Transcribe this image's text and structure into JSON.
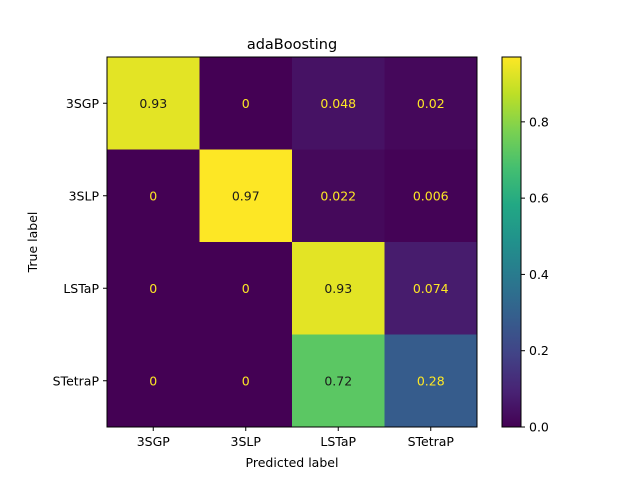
{
  "chart_data": {
    "type": "heatmap",
    "title": "adaBoosting",
    "xlabel": "Predicted label",
    "ylabel": "True label",
    "x_categories": [
      "3SGP",
      "3SLP",
      "LSTaP",
      "STetraP"
    ],
    "y_categories": [
      "3SGP",
      "3SLP",
      "LSTaP",
      "STetraP"
    ],
    "values": [
      [
        0.93,
        0,
        0.048,
        0.02
      ],
      [
        0,
        0.97,
        0.022,
        0.006
      ],
      [
        0,
        0,
        0.93,
        0.074
      ],
      [
        0,
        0,
        0.72,
        0.28
      ]
    ],
    "labels": [
      [
        "0.93",
        "0",
        "0.048",
        "0.02"
      ],
      [
        "0",
        "0.97",
        "0.022",
        "0.006"
      ],
      [
        "0",
        "0",
        "0.93",
        "0.074"
      ],
      [
        "0",
        "0",
        "0.72",
        "0.28"
      ]
    ],
    "colormap": "viridis",
    "vmin": 0,
    "vmax": 0.97,
    "colorbar_ticks": [
      0.0,
      0.2,
      0.4,
      0.6,
      0.8
    ],
    "colorbar_tick_labels": [
      "0.0",
      "0.2",
      "0.4",
      "0.6",
      "0.8"
    ],
    "text_color_dark": "#1a1a1a",
    "text_color_light": "#fde725"
  }
}
